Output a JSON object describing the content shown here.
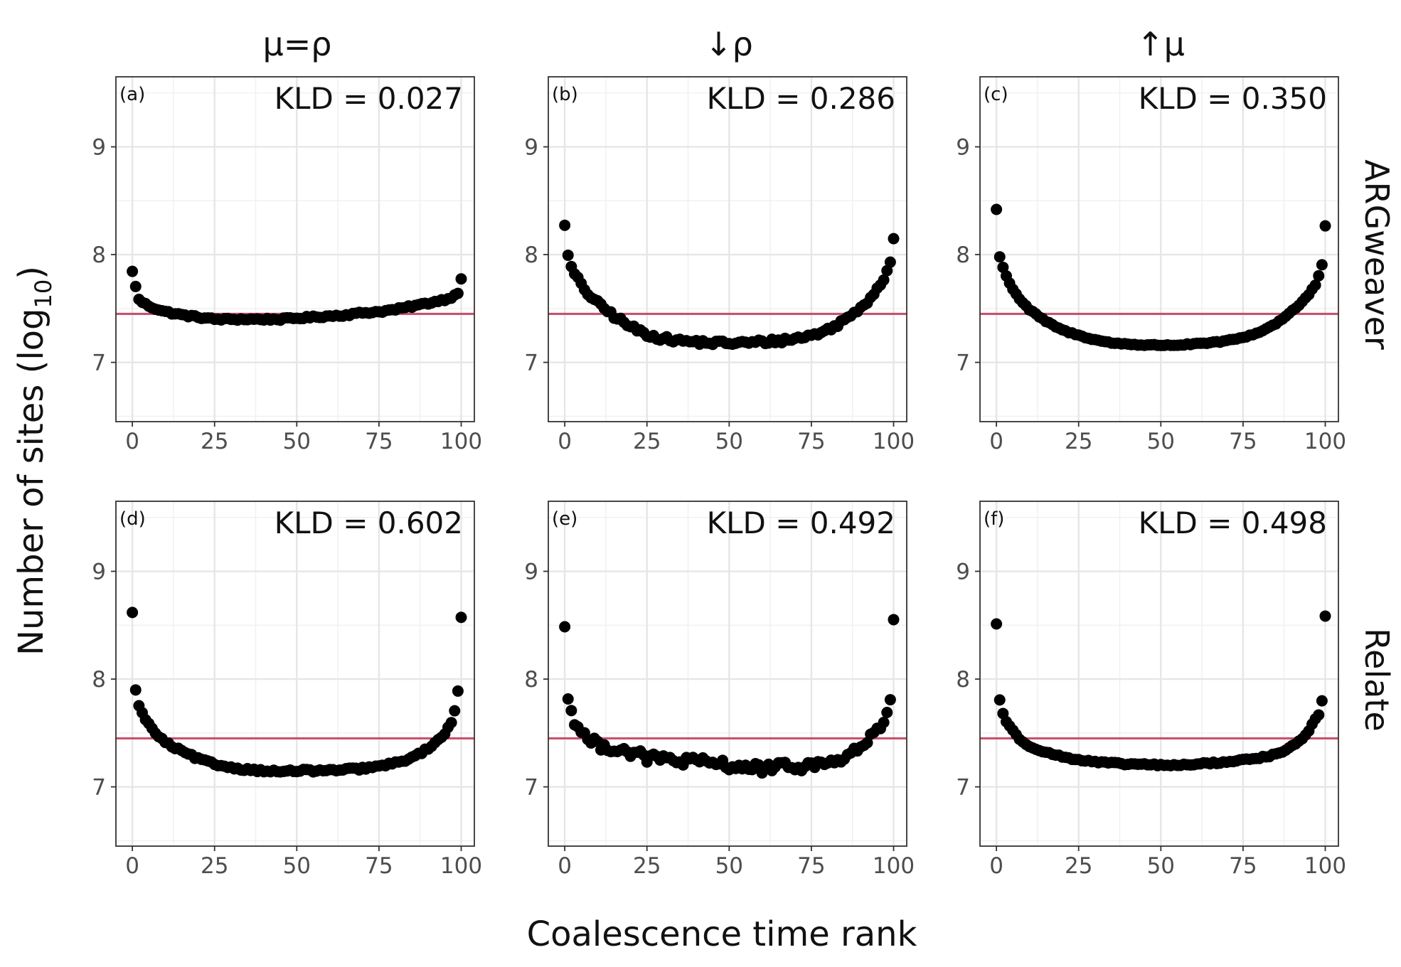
{
  "axis_labels": {
    "x": "Coalescence time rank",
    "y_prefix": "Number of sites (log",
    "y_sub": "10",
    "y_suffix": ")"
  },
  "column_titles": [
    "μ=ρ",
    "↓ρ",
    "↑μ"
  ],
  "row_labels": [
    "ARGweaver",
    "Relate"
  ],
  "colors": {
    "reference_line": "#c8526e",
    "points": "#000000"
  },
  "chart_data": {
    "type": "scatter",
    "xlim": [
      -5,
      104
    ],
    "ylim": [
      6.45,
      9.65
    ],
    "x_ticks": [
      0,
      25,
      50,
      75,
      100
    ],
    "y_ticks": [
      7,
      8,
      9
    ],
    "reference_y": 7.45,
    "grid": true,
    "panels": [
      {
        "tag": "(a)",
        "row": 0,
        "col": 0,
        "kld": "KLD = 0.027",
        "shape": {
          "x": [
            0,
            2,
            4,
            6,
            8,
            10,
            15,
            20,
            25,
            30,
            35,
            40,
            45,
            50,
            55,
            60,
            65,
            70,
            75,
            80,
            85,
            90,
            93,
            96,
            98,
            99,
            100
          ],
          "y": [
            7.84,
            7.58,
            7.54,
            7.51,
            7.49,
            7.47,
            7.44,
            7.42,
            7.4,
            7.4,
            7.4,
            7.4,
            7.4,
            7.41,
            7.42,
            7.43,
            7.44,
            7.46,
            7.47,
            7.49,
            7.52,
            7.55,
            7.57,
            7.59,
            7.62,
            7.65,
            7.78
          ]
        },
        "noise": 0.01
      },
      {
        "tag": "(b)",
        "row": 0,
        "col": 1,
        "kld": "KLD = 0.286",
        "shape": {
          "x": [
            0,
            1,
            2,
            3,
            5,
            7,
            10,
            15,
            20,
            25,
            30,
            35,
            40,
            45,
            50,
            55,
            60,
            65,
            70,
            75,
            80,
            85,
            88,
            92,
            95,
            97,
            98,
            99,
            100
          ],
          "y": [
            8.29,
            7.98,
            7.88,
            7.82,
            7.72,
            7.64,
            7.55,
            7.43,
            7.33,
            7.26,
            7.22,
            7.2,
            7.19,
            7.18,
            7.18,
            7.18,
            7.19,
            7.2,
            7.22,
            7.25,
            7.3,
            7.39,
            7.46,
            7.57,
            7.68,
            7.78,
            7.86,
            7.93,
            8.16
          ]
        },
        "noise": 0.022
      },
      {
        "tag": "(c)",
        "row": 0,
        "col": 2,
        "kld": "KLD = 0.350",
        "shape": {
          "x": [
            0,
            1,
            2,
            3,
            5,
            7,
            10,
            15,
            20,
            25,
            30,
            35,
            40,
            45,
            50,
            55,
            60,
            65,
            70,
            75,
            80,
            85,
            88,
            92,
            95,
            97,
            98,
            99,
            100
          ],
          "y": [
            8.42,
            7.98,
            7.88,
            7.8,
            7.68,
            7.59,
            7.49,
            7.38,
            7.3,
            7.25,
            7.21,
            7.18,
            7.17,
            7.16,
            7.16,
            7.16,
            7.17,
            7.18,
            7.2,
            7.23,
            7.28,
            7.36,
            7.43,
            7.53,
            7.63,
            7.72,
            7.8,
            7.9,
            8.27
          ]
        },
        "noise": 0.006
      },
      {
        "tag": "(d)",
        "row": 1,
        "col": 0,
        "kld": "KLD = 0.602",
        "shape": {
          "x": [
            0,
            1,
            2,
            3,
            5,
            7,
            10,
            15,
            20,
            25,
            30,
            35,
            40,
            45,
            50,
            55,
            60,
            65,
            70,
            75,
            80,
            85,
            88,
            92,
            95,
            97,
            98,
            99,
            100
          ],
          "y": [
            8.61,
            7.91,
            7.75,
            7.68,
            7.58,
            7.5,
            7.41,
            7.33,
            7.26,
            7.21,
            7.18,
            7.16,
            7.15,
            7.14,
            7.15,
            7.15,
            7.15,
            7.16,
            7.17,
            7.19,
            7.22,
            7.27,
            7.32,
            7.4,
            7.5,
            7.6,
            7.71,
            7.89,
            8.58
          ]
        },
        "noise": 0.012
      },
      {
        "tag": "(e)",
        "row": 1,
        "col": 1,
        "kld": "KLD = 0.492",
        "shape": {
          "x": [
            0,
            1,
            2,
            3,
            5,
            7,
            10,
            15,
            20,
            25,
            30,
            35,
            40,
            45,
            50,
            55,
            60,
            65,
            70,
            75,
            80,
            85,
            88,
            92,
            95,
            97,
            98,
            99,
            100
          ],
          "y": [
            8.51,
            7.8,
            7.7,
            7.62,
            7.52,
            7.44,
            7.39,
            7.36,
            7.32,
            7.27,
            7.26,
            7.24,
            7.23,
            7.22,
            7.2,
            7.18,
            7.17,
            7.18,
            7.19,
            7.2,
            7.22,
            7.27,
            7.33,
            7.42,
            7.52,
            7.6,
            7.66,
            7.77,
            8.58
          ]
        },
        "noise": 0.045
      },
      {
        "tag": "(f)",
        "row": 1,
        "col": 2,
        "kld": "KLD = 0.498",
        "shape": {
          "x": [
            0,
            1,
            2,
            3,
            5,
            7,
            10,
            15,
            20,
            25,
            30,
            35,
            40,
            45,
            50,
            55,
            60,
            65,
            70,
            75,
            80,
            85,
            88,
            92,
            95,
            97,
            98,
            99,
            100
          ],
          "y": [
            8.51,
            7.81,
            7.68,
            7.61,
            7.52,
            7.44,
            7.38,
            7.32,
            7.28,
            7.25,
            7.23,
            7.22,
            7.21,
            7.21,
            7.2,
            7.2,
            7.21,
            7.22,
            7.23,
            7.25,
            7.27,
            7.3,
            7.34,
            7.42,
            7.52,
            7.63,
            7.67,
            7.8,
            8.59
          ]
        },
        "noise": 0.008
      }
    ]
  }
}
